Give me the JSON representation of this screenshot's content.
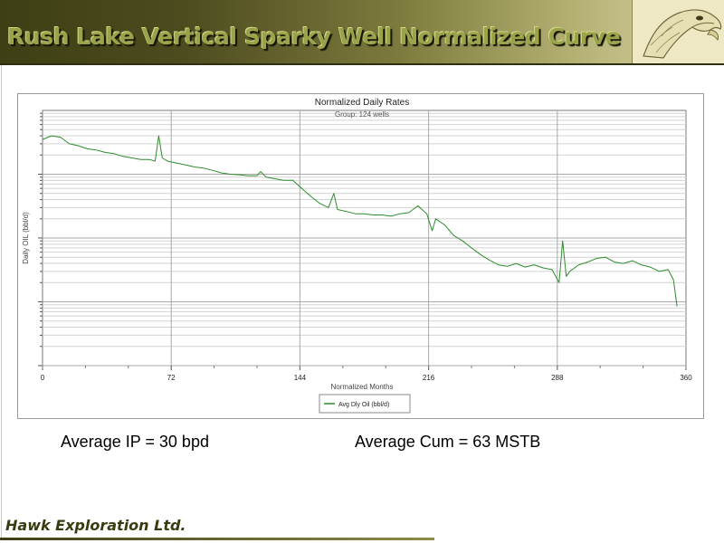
{
  "header": {
    "title": "Rush Lake Vertical Sparky Well Normalized Curve"
  },
  "logo": {
    "icon": "eagle-head-icon"
  },
  "chart_data": {
    "type": "line",
    "title": "Normalized Daily Rates",
    "subtitle": "Group: 124 wells",
    "xlabel": "Normalized Months",
    "ylabel": "Daily OIL (bbl/d)",
    "xlim": [
      0,
      360
    ],
    "xticks": [
      0,
      72,
      144,
      216,
      288,
      360
    ],
    "xtick_labels": [
      "0",
      "72",
      "144",
      "216",
      "288",
      "360"
    ],
    "yscale": "log",
    "ylim": [
      0.01,
      100
    ],
    "grid": true,
    "legend_position": "bottom-center",
    "series": [
      {
        "name": "Avg Dly Oil (bbl/d)",
        "color": "#2e8b2e",
        "x": [
          0,
          5,
          10,
          15,
          20,
          25,
          30,
          35,
          40,
          45,
          50,
          55,
          60,
          63,
          65,
          67,
          70,
          75,
          80,
          85,
          90,
          95,
          100,
          105,
          110,
          115,
          120,
          122,
          125,
          130,
          135,
          140,
          145,
          150,
          155,
          160,
          163,
          165,
          170,
          175,
          180,
          185,
          190,
          195,
          200,
          205,
          210,
          215,
          218,
          220,
          225,
          230,
          235,
          240,
          245,
          250,
          255,
          260,
          265,
          270,
          275,
          280,
          285,
          289,
          291,
          293,
          295,
          300,
          305,
          310,
          315,
          320,
          325,
          330,
          335,
          340,
          345,
          350,
          353,
          355
        ],
        "y": [
          35,
          40,
          38,
          30,
          28,
          25,
          24,
          22,
          21,
          19,
          18,
          17,
          17,
          16,
          40,
          18,
          16,
          15,
          14,
          13,
          12.5,
          11.5,
          10.5,
          10,
          9.8,
          9.5,
          9.5,
          11,
          9,
          8.5,
          8,
          8,
          6,
          4.5,
          3.5,
          3,
          5,
          2.8,
          2.6,
          2.4,
          2.4,
          2.3,
          2.3,
          2.2,
          2.4,
          2.5,
          3.2,
          2.4,
          1.3,
          2,
          1.6,
          1.1,
          0.9,
          0.7,
          0.55,
          0.45,
          0.38,
          0.36,
          0.4,
          0.35,
          0.38,
          0.34,
          0.32,
          0.2,
          0.9,
          0.25,
          0.3,
          0.38,
          0.42,
          0.48,
          0.5,
          0.42,
          0.4,
          0.44,
          0.38,
          0.35,
          0.3,
          0.32,
          0.22,
          0.085
        ]
      }
    ]
  },
  "stats": {
    "avg_ip": "Average IP = 30 bpd",
    "avg_cum": "Average Cum = 63 MSTB"
  },
  "footer": {
    "company": "Hawk Exploration Ltd."
  }
}
